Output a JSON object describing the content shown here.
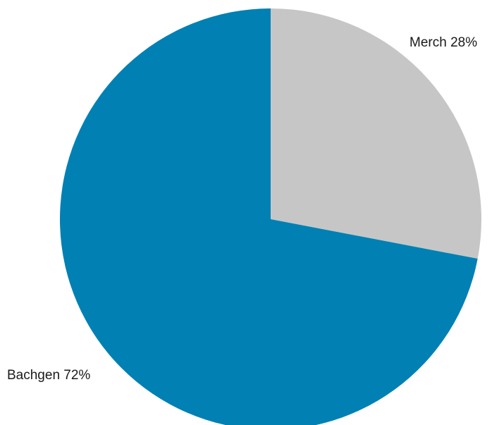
{
  "chart_data": {
    "type": "pie",
    "slices": [
      {
        "name": "Merch",
        "value": 28,
        "label": "Merch 28%",
        "color": "#c6c6c6"
      },
      {
        "name": "Bachgen",
        "value": 72,
        "label": "Bachgen 72%",
        "color": "#0080b3"
      }
    ],
    "start_angle": "12 o'clock",
    "direction": "clockwise",
    "legend": "none"
  }
}
